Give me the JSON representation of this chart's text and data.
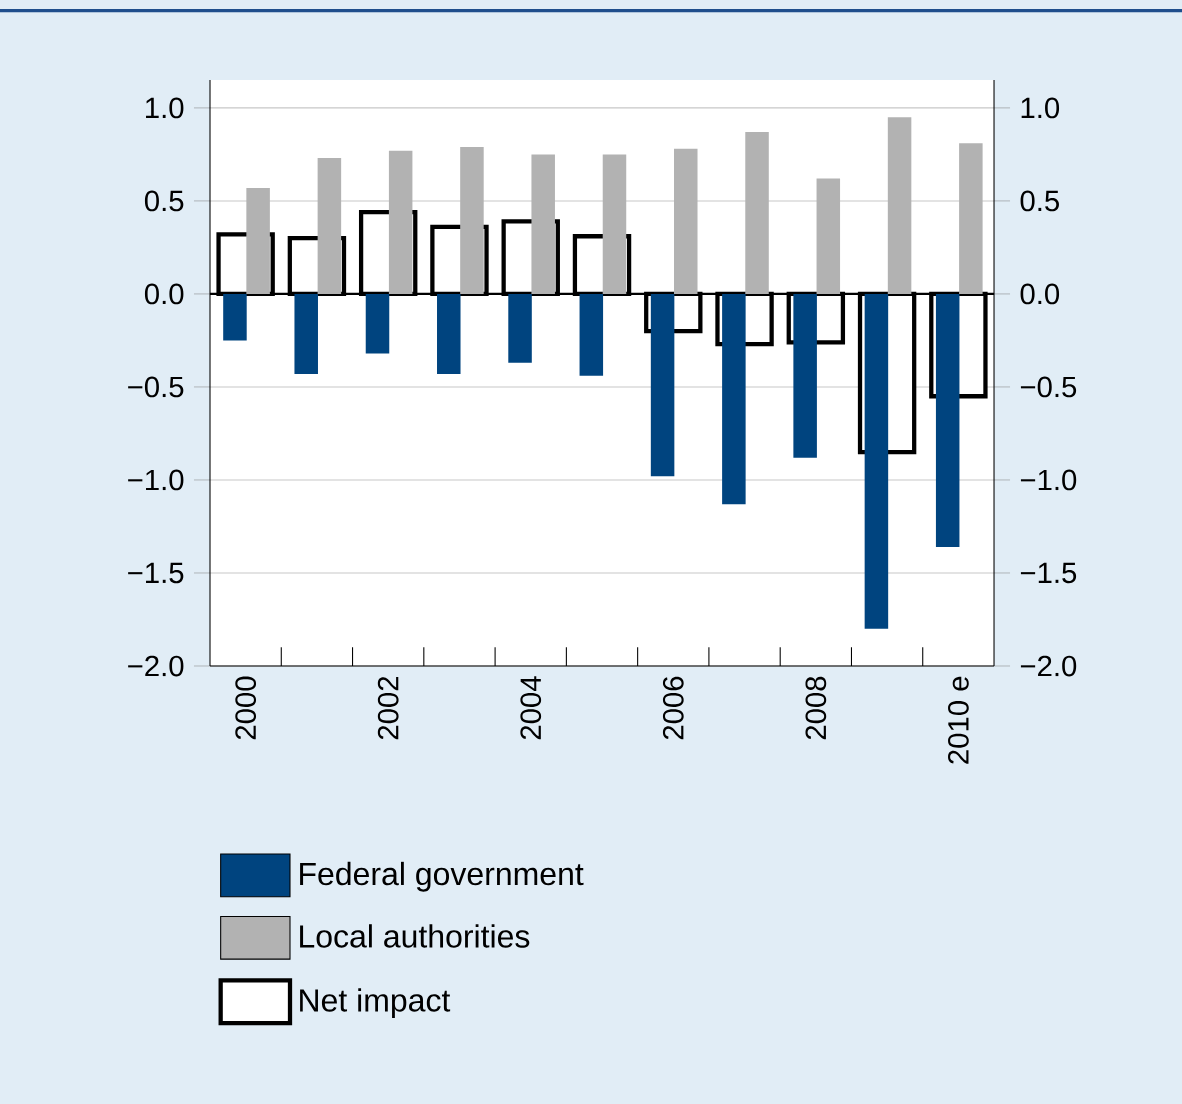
{
  "chart_data": {
    "type": "bar",
    "categories": [
      "2000",
      null,
      "2002",
      null,
      "2004",
      null,
      "2006",
      null,
      "2008",
      null,
      "2010 e"
    ],
    "series": [
      {
        "name": "Federal government",
        "color": "#00447f",
        "values": [
          -0.25,
          -0.43,
          -0.32,
          -0.43,
          -0.37,
          -0.44,
          -0.98,
          -1.13,
          -0.88,
          -1.8,
          -1.36
        ]
      },
      {
        "name": "Local authorities",
        "color": "#b2b2b2",
        "values": [
          0.57,
          0.73,
          0.77,
          0.79,
          0.75,
          0.75,
          0.78,
          0.87,
          0.62,
          0.95,
          0.81
        ]
      },
      {
        "name": "Net impact",
        "color": "#ffffff",
        "values": [
          0.32,
          0.3,
          0.44,
          0.36,
          0.39,
          0.31,
          -0.2,
          -0.27,
          -0.26,
          -0.85,
          -0.55
        ]
      }
    ],
    "ylim": [
      -2,
      1.15
    ],
    "yticks": [
      {
        "value": -2,
        "label": "−2.0"
      },
      {
        "value": -1.5,
        "label": "−1.5"
      },
      {
        "value": -1,
        "label": "−1.0"
      },
      {
        "value": -0.5,
        "label": "−0.5"
      },
      {
        "value": 0,
        "label": "0.0"
      },
      {
        "value": 0.5,
        "label": "0.5"
      },
      {
        "value": 1,
        "label": "1.0"
      }
    ],
    "y2lim": [
      -2,
      1.15
    ],
    "y2ticks": [
      {
        "value": -2,
        "label": "−2.0"
      },
      {
        "value": -1.5,
        "label": "−1.5"
      },
      {
        "value": -1,
        "label": "−1.0"
      },
      {
        "value": -0.5,
        "label": "−0.5"
      },
      {
        "value": 0,
        "label": "0.0"
      },
      {
        "value": 0.5,
        "label": "0.5"
      },
      {
        "value": 1,
        "label": "1.0"
      }
    ],
    "grid": "y",
    "legend": "bottom"
  }
}
